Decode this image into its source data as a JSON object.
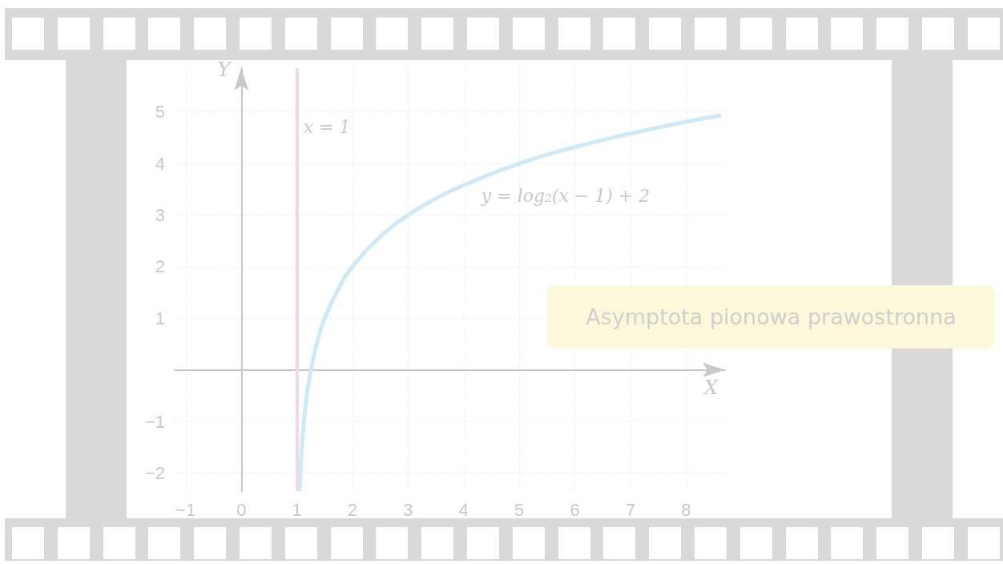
{
  "chart_data": {
    "type": "line",
    "xlabel": "X",
    "ylabel": "Y",
    "x": [
      1.05,
      1.1,
      1.15,
      1.2,
      1.3,
      1.4,
      1.5,
      1.75,
      2,
      2.5,
      3,
      3.5,
      4,
      5,
      6,
      7,
      8,
      8.6
    ],
    "series": [
      {
        "name": "y = log₂(x − 1) + 2",
        "color": "#cfe9f6",
        "values": [
          -2.32,
          -1.32,
          -0.74,
          -0.32,
          0.26,
          0.68,
          1.0,
          1.58,
          2,
          2.58,
          3,
          3.32,
          3.58,
          4,
          4.32,
          4.58,
          4.81,
          4.93
        ]
      }
    ],
    "xlim": [
      -1.2,
      8.7
    ],
    "ylim": [
      -2.35,
      5.85
    ],
    "xticks": [
      {
        "value": -1,
        "label": "−1"
      },
      0,
      1,
      2,
      3,
      4,
      5,
      6,
      7,
      8
    ],
    "yticks": [
      {
        "value": -2,
        "label": "−2"
      },
      {
        "value": -1,
        "label": "−1"
      },
      {
        "value": 0,
        "label": null
      },
      1,
      2,
      3,
      4,
      5
    ],
    "ref_lines": [
      {
        "axis": "x",
        "value": 1,
        "label": "x = 1",
        "color": "#f2d6ee"
      }
    ],
    "annotations": [
      "Asymptota pionowa prawostronna"
    ],
    "grid": true,
    "legend": false,
    "marker": "none",
    "line_style": "solid"
  }
}
